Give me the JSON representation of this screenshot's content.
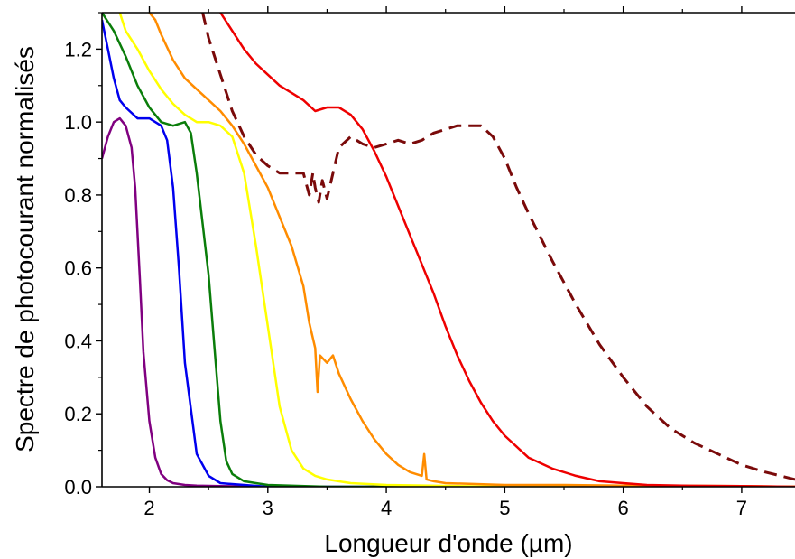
{
  "chart_data": {
    "type": "line",
    "title": "",
    "xlabel": "Longueur d'onde (µm)",
    "ylabel": "Spectre de photocourant normalisés",
    "xlim": [
      1.6,
      7.45
    ],
    "ylim": [
      0.0,
      1.3
    ],
    "xticks": [
      2,
      3,
      4,
      5,
      6,
      7
    ],
    "xtick_labels": [
      "2",
      "3",
      "4",
      "5",
      "6",
      "7"
    ],
    "yticks": [
      0.0,
      0.2,
      0.4,
      0.6,
      0.8,
      1.0,
      1.2
    ],
    "ytick_labels": [
      "0.0",
      "0.2",
      "0.4",
      "0.6",
      "0.8",
      "1.0",
      "1.2"
    ],
    "grid": false,
    "legend": "none",
    "series": [
      {
        "color": "#800080",
        "style": "solid",
        "x": [
          1.6,
          1.65,
          1.7,
          1.75,
          1.8,
          1.85,
          1.88,
          1.92,
          1.95,
          2.0,
          2.05,
          2.1,
          2.15,
          2.2,
          2.3,
          2.4,
          2.6,
          3.0,
          4.0,
          5.0,
          6.0,
          7.0,
          7.45
        ],
        "y": [
          0.9,
          0.96,
          1.0,
          1.01,
          0.99,
          0.93,
          0.82,
          0.57,
          0.37,
          0.18,
          0.08,
          0.035,
          0.018,
          0.01,
          0.005,
          0.003,
          0.002,
          0.0,
          0.0,
          0.0,
          0.0,
          0.0,
          0.0
        ]
      },
      {
        "color": "#0000ee",
        "style": "solid",
        "x": [
          1.6,
          1.65,
          1.7,
          1.75,
          1.8,
          1.9,
          2.0,
          2.1,
          2.15,
          2.2,
          2.25,
          2.3,
          2.4,
          2.5,
          2.6,
          2.8,
          3.0,
          4.0,
          5.0,
          6.0,
          7.0,
          7.45
        ],
        "y": [
          1.28,
          1.2,
          1.12,
          1.06,
          1.04,
          1.01,
          1.01,
          0.99,
          0.95,
          0.82,
          0.6,
          0.34,
          0.09,
          0.03,
          0.01,
          0.005,
          0.0,
          0.0,
          0.0,
          0.0,
          0.0,
          0.0
        ]
      },
      {
        "color": "#0a7d0a",
        "style": "solid",
        "x": [
          1.6,
          1.7,
          1.8,
          1.9,
          2.0,
          2.1,
          2.2,
          2.3,
          2.35,
          2.4,
          2.45,
          2.5,
          2.55,
          2.6,
          2.65,
          2.7,
          2.8,
          2.9,
          3.0,
          3.5,
          4.0,
          5.0,
          6.0,
          7.0,
          7.45
        ],
        "y": [
          1.3,
          1.25,
          1.18,
          1.1,
          1.04,
          1.0,
          0.99,
          1.0,
          0.97,
          0.86,
          0.72,
          0.58,
          0.38,
          0.18,
          0.07,
          0.035,
          0.015,
          0.01,
          0.005,
          0.0,
          0.0,
          0.0,
          0.0,
          0.0,
          0.0
        ]
      },
      {
        "color": "#ffff00",
        "style": "solid",
        "x": [
          1.75,
          1.8,
          1.9,
          2.0,
          2.1,
          2.2,
          2.3,
          2.4,
          2.5,
          2.6,
          2.7,
          2.8,
          2.9,
          3.0,
          3.1,
          3.2,
          3.3,
          3.4,
          3.5,
          3.7,
          4.0,
          5.0,
          6.0,
          7.0,
          7.45
        ],
        "y": [
          1.3,
          1.25,
          1.2,
          1.14,
          1.09,
          1.05,
          1.02,
          1.0,
          1.0,
          0.99,
          0.96,
          0.86,
          0.66,
          0.44,
          0.22,
          0.1,
          0.05,
          0.03,
          0.02,
          0.01,
          0.005,
          0.0,
          0.0,
          0.0,
          0.0
        ]
      },
      {
        "color": "#ff8c00",
        "style": "solid",
        "x": [
          2.0,
          2.05,
          2.1,
          2.2,
          2.3,
          2.4,
          2.5,
          2.6,
          2.7,
          2.8,
          2.9,
          3.0,
          3.1,
          3.2,
          3.3,
          3.35,
          3.4,
          3.42,
          3.44,
          3.5,
          3.55,
          3.6,
          3.7,
          3.8,
          3.9,
          4.0,
          4.1,
          4.2,
          4.3,
          4.32,
          4.34,
          4.4,
          4.5,
          5.0,
          5.5,
          6.0,
          6.5,
          7.0,
          7.45
        ],
        "y": [
          1.3,
          1.28,
          1.24,
          1.17,
          1.12,
          1.09,
          1.06,
          1.03,
          0.99,
          0.94,
          0.88,
          0.82,
          0.74,
          0.66,
          0.55,
          0.45,
          0.38,
          0.26,
          0.36,
          0.34,
          0.36,
          0.31,
          0.24,
          0.18,
          0.13,
          0.09,
          0.06,
          0.04,
          0.03,
          0.09,
          0.02,
          0.015,
          0.01,
          0.005,
          0.005,
          0.003,
          0.003,
          0.002,
          0.0
        ]
      },
      {
        "color": "#ee0000",
        "style": "solid",
        "x": [
          2.6,
          2.7,
          2.8,
          2.9,
          3.0,
          3.1,
          3.2,
          3.3,
          3.4,
          3.5,
          3.6,
          3.7,
          3.8,
          3.9,
          4.0,
          4.1,
          4.2,
          4.3,
          4.4,
          4.5,
          4.6,
          4.7,
          4.8,
          4.9,
          5.0,
          5.2,
          5.4,
          5.6,
          5.8,
          6.0,
          6.2,
          6.5,
          7.0,
          7.45
        ],
        "y": [
          1.3,
          1.25,
          1.2,
          1.16,
          1.13,
          1.1,
          1.08,
          1.06,
          1.03,
          1.04,
          1.04,
          1.02,
          0.98,
          0.92,
          0.85,
          0.77,
          0.69,
          0.61,
          0.53,
          0.44,
          0.36,
          0.29,
          0.23,
          0.18,
          0.14,
          0.08,
          0.05,
          0.03,
          0.015,
          0.01,
          0.005,
          0.003,
          0.002,
          0.0
        ]
      },
      {
        "color": "#7a0a0a",
        "style": "dashed",
        "x": [
          2.45,
          2.5,
          2.6,
          2.7,
          2.8,
          2.9,
          3.0,
          3.1,
          3.2,
          3.3,
          3.35,
          3.38,
          3.4,
          3.43,
          3.46,
          3.5,
          3.6,
          3.7,
          3.8,
          3.9,
          4.0,
          4.1,
          4.2,
          4.3,
          4.4,
          4.6,
          4.8,
          4.9,
          5.0,
          5.1,
          5.2,
          5.4,
          5.6,
          5.8,
          6.0,
          6.2,
          6.4,
          6.6,
          6.8,
          7.0,
          7.2,
          7.45
        ],
        "y": [
          1.3,
          1.23,
          1.13,
          1.03,
          0.96,
          0.91,
          0.88,
          0.86,
          0.86,
          0.86,
          0.8,
          0.86,
          0.82,
          0.78,
          0.84,
          0.79,
          0.93,
          0.96,
          0.94,
          0.93,
          0.94,
          0.95,
          0.94,
          0.95,
          0.97,
          0.99,
          0.99,
          0.96,
          0.9,
          0.82,
          0.75,
          0.62,
          0.5,
          0.39,
          0.3,
          0.22,
          0.16,
          0.12,
          0.09,
          0.06,
          0.04,
          0.02
        ]
      }
    ]
  }
}
